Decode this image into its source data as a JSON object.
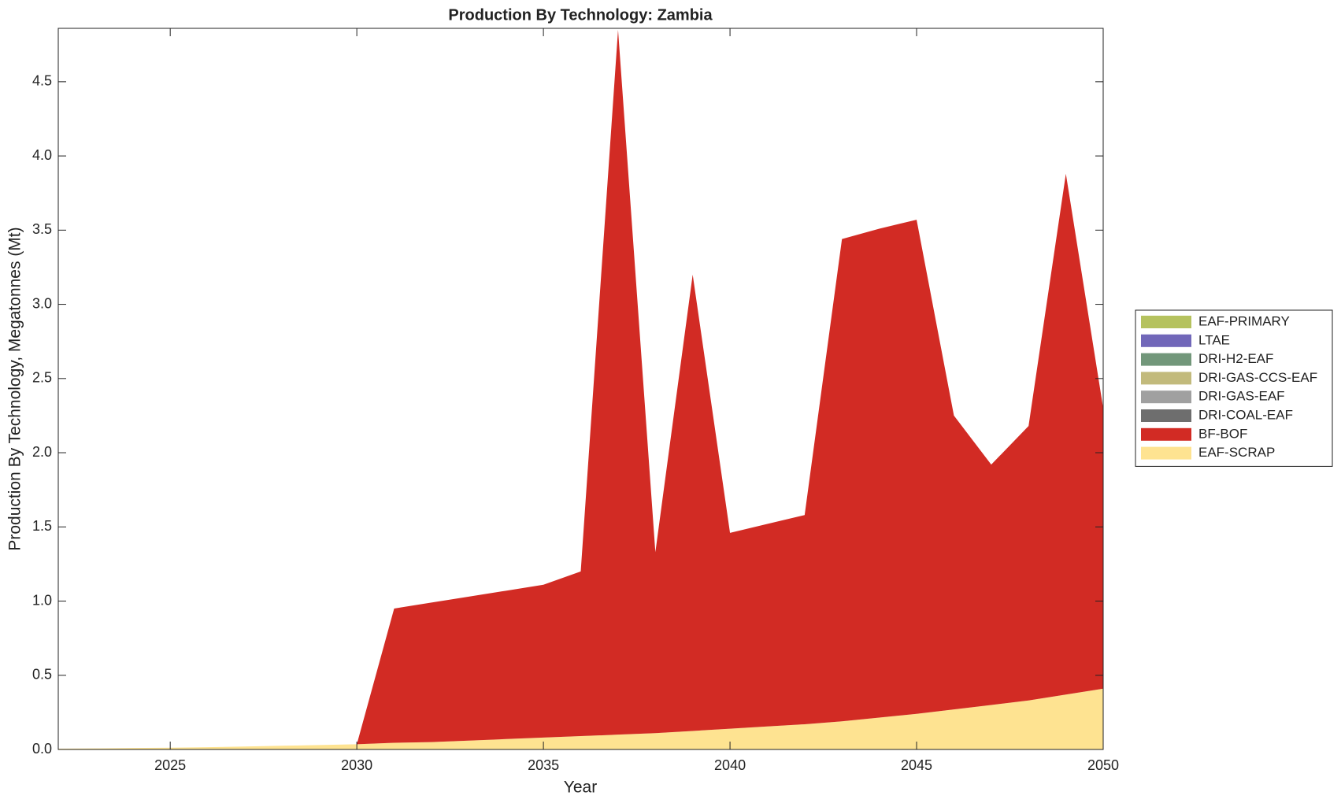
{
  "chart_data": {
    "type": "stacked-area",
    "title": "Production By Technology: Zambia",
    "x_label": "Year",
    "y_label": "Production By Technology, Megatonnes (Mt)",
    "x": [
      2022,
      2023,
      2024,
      2025,
      2026,
      2027,
      2028,
      2029,
      2030,
      2031,
      2032,
      2033,
      2034,
      2035,
      2036,
      2037,
      2038,
      2039,
      2040,
      2041,
      2042,
      2043,
      2044,
      2045,
      2046,
      2047,
      2048,
      2049,
      2050
    ],
    "series": [
      {
        "name": "EAF-PRIMARY",
        "color": "#b5c25e",
        "values": [
          0,
          0,
          0,
          0,
          0,
          0,
          0,
          0,
          0,
          0,
          0,
          0,
          0,
          0,
          0,
          0,
          0,
          0,
          0,
          0,
          0,
          0,
          0,
          0,
          0,
          0,
          0,
          0,
          0
        ]
      },
      {
        "name": "LTAE",
        "color": "#7167b9",
        "values": [
          0,
          0,
          0,
          0,
          0,
          0,
          0,
          0,
          0,
          0,
          0,
          0,
          0,
          0,
          0,
          0,
          0,
          0,
          0,
          0,
          0,
          0,
          0,
          0,
          0,
          0,
          0,
          0,
          0
        ]
      },
      {
        "name": "DRI-H2-EAF",
        "color": "#72977a",
        "values": [
          0,
          0,
          0,
          0,
          0,
          0,
          0,
          0,
          0,
          0,
          0,
          0,
          0,
          0,
          0,
          0,
          0,
          0,
          0,
          0,
          0,
          0,
          0,
          0,
          0,
          0,
          0,
          0,
          0
        ]
      },
      {
        "name": "DRI-GAS-CCS-EAF",
        "color": "#c2ba7c",
        "values": [
          0,
          0,
          0,
          0,
          0,
          0,
          0,
          0,
          0,
          0,
          0,
          0,
          0,
          0,
          0,
          0,
          0,
          0,
          0,
          0,
          0,
          0,
          0,
          0,
          0,
          0,
          0,
          0,
          0
        ]
      },
      {
        "name": "DRI-GAS-EAF",
        "color": "#a0a0a0",
        "values": [
          0,
          0,
          0,
          0,
          0,
          0,
          0,
          0,
          0,
          0,
          0,
          0,
          0,
          0,
          0,
          0,
          0,
          0,
          0,
          0,
          0,
          0,
          0,
          0,
          0,
          0,
          0,
          0,
          0
        ]
      },
      {
        "name": "DRI-COAL-EAF",
        "color": "#6e6e6e",
        "values": [
          0,
          0,
          0,
          0,
          0,
          0,
          0,
          0,
          0,
          0,
          0,
          0,
          0,
          0,
          0,
          0,
          0,
          0,
          0,
          0,
          0,
          0,
          0,
          0,
          0,
          0,
          0,
          0,
          0
        ]
      },
      {
        "name": "BF-BOF",
        "color": "#d22b24",
        "values": [
          0,
          0,
          0,
          0,
          0,
          0,
          0,
          0,
          0,
          0.905,
          0.94,
          0.97,
          1.0,
          1.03,
          1.11,
          4.75,
          1.22,
          3.075,
          1.32,
          1.365,
          1.41,
          3.25,
          3.295,
          3.33,
          1.98,
          1.62,
          1.85,
          3.51,
          1.89
        ]
      },
      {
        "name": "EAF-SCRAP",
        "color": "#fee391",
        "values": [
          0.005,
          0.007,
          0.01,
          0.012,
          0.015,
          0.02,
          0.025,
          0.03,
          0.035,
          0.045,
          0.05,
          0.06,
          0.07,
          0.08,
          0.09,
          0.1,
          0.11,
          0.125,
          0.14,
          0.155,
          0.17,
          0.19,
          0.215,
          0.24,
          0.27,
          0.3,
          0.33,
          0.37,
          0.41
        ]
      }
    ],
    "xlim": [
      2022,
      2050
    ],
    "xticks": [
      2025,
      2030,
      2035,
      2040,
      2045,
      2050
    ],
    "ylim": [
      0,
      4.86
    ],
    "yticks": [
      {
        "value": 0,
        "label": "0.0"
      },
      0.5,
      {
        "value": 1,
        "label": "1.0"
      },
      1.5,
      {
        "value": 2,
        "label": "2.0"
      },
      2.5,
      {
        "value": 3,
        "label": "3.0"
      },
      3.5,
      {
        "value": 4,
        "label": "4.0"
      },
      4.5
    ],
    "legend": "right"
  }
}
